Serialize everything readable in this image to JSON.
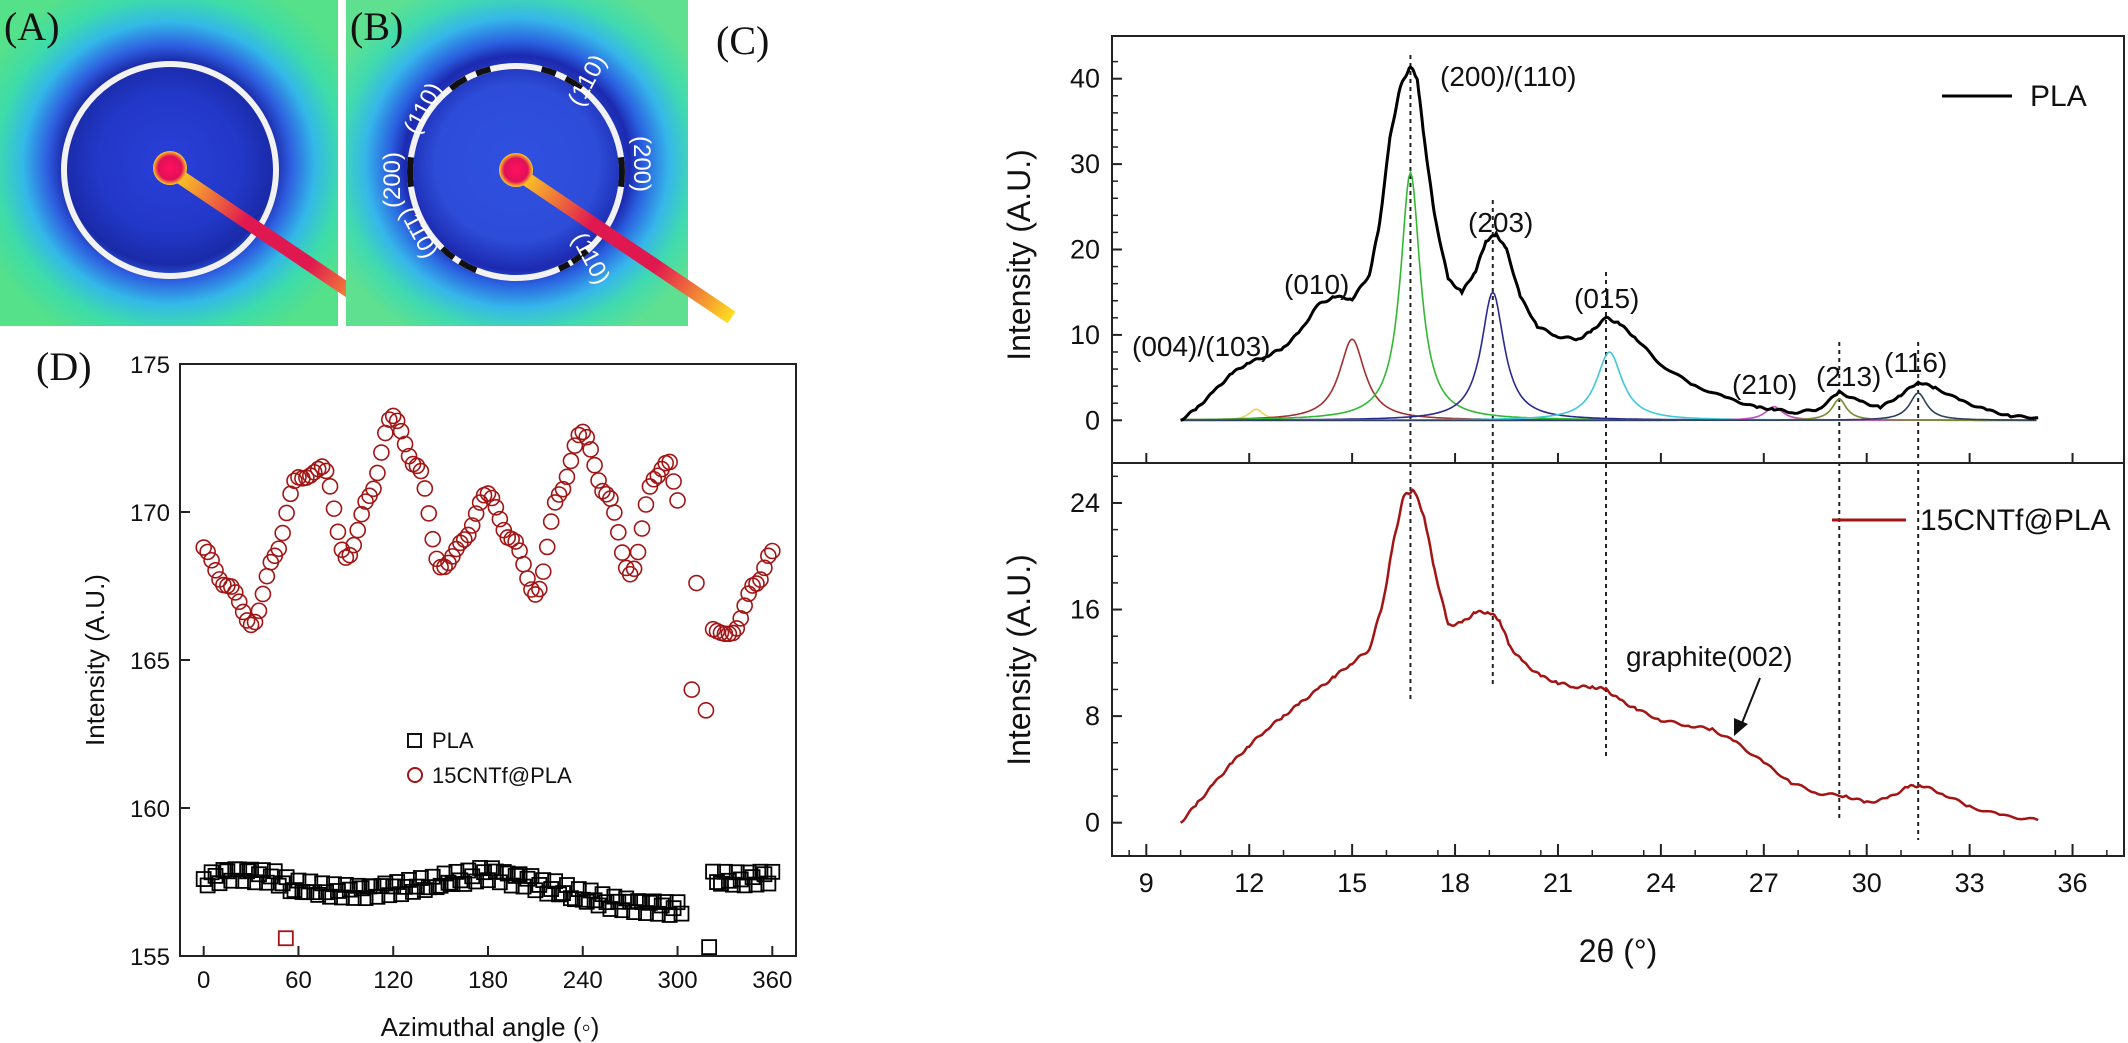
{
  "figure": {
    "panel_labels": [
      "(A)",
      "(B)",
      "(C)",
      "(D)"
    ]
  },
  "colors": {
    "pla": "#000000",
    "cnt": "#a31515",
    "deconv": [
      "#e8d45a",
      "#a33030",
      "#33b833",
      "#2a2a90",
      "#40c8d8",
      "#c050c0",
      "#7a8a30",
      "#304060"
    ],
    "waxs_bg": "#35e0a0",
    "waxs_ring": "#2030c8",
    "waxs_center": "#e0105a"
  },
  "waxs": {
    "A": {
      "description_free": true
    },
    "B": {
      "ring_labels": [
        "(110)",
        "(200)",
        "(110)",
        "(110)",
        "(200)",
        "(110)"
      ]
    }
  },
  "chart_data": [
    {
      "id": "C-top",
      "type": "line",
      "title": "",
      "xlabel": "2θ (°)",
      "ylabel": "Intensity (A.U.)",
      "xlim": [
        8,
        37.5
      ],
      "ylim": [
        -5,
        45
      ],
      "xticks": [
        9,
        12,
        15,
        18,
        21,
        24,
        27,
        30,
        33,
        36
      ],
      "yticks": [
        0,
        10,
        20,
        30,
        40
      ],
      "legend": {
        "position": "top-right",
        "entries": [
          "PLA"
        ]
      },
      "series": [
        {
          "name": "PLA",
          "color": "#000000",
          "x": [
            10.0,
            10.5,
            11.0,
            11.5,
            12.0,
            12.5,
            13.0,
            13.5,
            14.0,
            14.5,
            15.0,
            15.5,
            15.8,
            16.1,
            16.4,
            16.7,
            16.9,
            17.1,
            17.4,
            17.8,
            18.2,
            18.6,
            18.9,
            19.2,
            19.5,
            19.9,
            20.4,
            21.0,
            21.6,
            22.0,
            22.4,
            22.8,
            23.3,
            24.0,
            25.0,
            26.0,
            26.8,
            27.3,
            27.9,
            28.6,
            29.2,
            29.8,
            30.4,
            31.0,
            31.5,
            32.0,
            32.8,
            33.5,
            34.2,
            35.0
          ],
          "values": [
            0,
            1.5,
            3.5,
            5.5,
            6.8,
            7.5,
            8.5,
            10.5,
            13.5,
            14.5,
            14.2,
            17,
            23,
            33,
            39,
            41.5,
            40,
            33,
            24,
            16.5,
            15,
            17.5,
            21,
            21.8,
            20,
            14.5,
            11,
            9.8,
            9.5,
            10.5,
            12,
            11.3,
            9.5,
            6.5,
            4,
            2.5,
            1.5,
            1.3,
            0.9,
            1.3,
            3.3,
            2.2,
            1.5,
            3,
            4.5,
            3.8,
            2.2,
            1.2,
            0.5,
            0.3
          ]
        }
      ],
      "deconvolution_peaks": [
        {
          "center": 12.2,
          "height": 1.3,
          "width": 0.25
        },
        {
          "center": 15.0,
          "height": 9.5,
          "width": 0.45
        },
        {
          "center": 16.7,
          "height": 29,
          "width": 0.35
        },
        {
          "center": 19.1,
          "height": 15,
          "width": 0.4
        },
        {
          "center": 22.5,
          "height": 8,
          "width": 0.45
        },
        {
          "center": 27.3,
          "height": 1.6,
          "width": 0.3
        },
        {
          "center": 29.2,
          "height": 2.5,
          "width": 0.25
        },
        {
          "center": 31.5,
          "height": 3.2,
          "width": 0.3
        }
      ],
      "annotations": [
        "(200)/(110)",
        "(203)",
        "(010)",
        "(015)",
        "(004)/(103)",
        "(210)",
        "(213)",
        "(116)"
      ],
      "dashed_lines_x": [
        16.7,
        19.1,
        22.4,
        29.2,
        31.5
      ]
    },
    {
      "id": "C-bottom",
      "type": "line",
      "title": "",
      "xlabel": "2θ (°)",
      "ylabel": "Intensity (A.U.)",
      "xlim": [
        8,
        37.5
      ],
      "ylim": [
        -2.5,
        27
      ],
      "xticks": [
        9,
        12,
        15,
        18,
        21,
        24,
        27,
        30,
        33,
        36
      ],
      "yticks": [
        0,
        8,
        16,
        24
      ],
      "legend": {
        "position": "top-right",
        "entries": [
          "15CNTf@PLA"
        ]
      },
      "series": [
        {
          "name": "15CNTf@PLA",
          "color": "#a31515",
          "x": [
            10.0,
            10.5,
            11.0,
            11.5,
            12.0,
            12.5,
            13.0,
            13.5,
            14.0,
            14.5,
            15.0,
            15.5,
            15.9,
            16.2,
            16.5,
            16.8,
            17.1,
            17.4,
            17.8,
            18.2,
            18.6,
            19.0,
            19.3,
            19.6,
            20.0,
            20.5,
            21.0,
            21.5,
            22.0,
            22.4,
            22.8,
            23.3,
            24.0,
            24.8,
            25.5,
            26.2,
            27.0,
            27.8,
            28.6,
            29.4,
            30.0,
            30.6,
            31.2,
            31.6,
            32.2,
            33.0,
            34.0,
            35.0
          ],
          "values": [
            0,
            1.5,
            3,
            4.5,
            5.8,
            7,
            8,
            9,
            10,
            11,
            12,
            13,
            16.5,
            21,
            24.5,
            25,
            23,
            19,
            14.8,
            15,
            15.8,
            15.8,
            15.2,
            13.2,
            12,
            11,
            10.5,
            10.2,
            10.2,
            10,
            9.2,
            8.5,
            7.7,
            7.3,
            7,
            6,
            4.5,
            3,
            2.2,
            2,
            1.5,
            1.8,
            2.7,
            2.8,
            2.2,
            1.2,
            0.5,
            0.2
          ]
        }
      ],
      "annotations": [
        "graphite(002)"
      ],
      "dashed_lines_x": [
        16.7,
        19.1,
        22.4,
        29.2,
        31.5
      ]
    },
    {
      "id": "D",
      "type": "scatter",
      "title": "",
      "xlabel": "Azimuthal angle (◦)",
      "ylabel": "Intensity (A.U.)",
      "xlim": [
        -15,
        375
      ],
      "ylim": [
        155,
        175
      ],
      "xticks": [
        0,
        60,
        120,
        180,
        240,
        300,
        360
      ],
      "yticks": [
        155,
        160,
        165,
        170,
        175
      ],
      "legend": {
        "position": "center",
        "entries": [
          "PLA",
          "15CNTf@PLA"
        ]
      },
      "series": [
        {
          "name": "PLA",
          "marker": "square",
          "color": "#000000",
          "values_description": "near-flat around 157.5",
          "x": [
            0,
            20,
            40,
            60,
            80,
            100,
            120,
            140,
            160,
            180,
            200,
            220,
            240,
            260,
            280,
            300,
            320,
            340,
            360
          ],
          "values": [
            157.6,
            157.8,
            157.7,
            157.3,
            157.2,
            157.2,
            157.3,
            157.4,
            157.6,
            157.8,
            157.6,
            157.3,
            157.0,
            156.8,
            156.7,
            156.6,
            157.6,
            157.6,
            157.7
          ]
        },
        {
          "name": "15CNTf@PLA",
          "marker": "circle",
          "color": "#a31515",
          "x": [
            0,
            15,
            30,
            45,
            60,
            75,
            90,
            105,
            120,
            135,
            150,
            165,
            180,
            195,
            210,
            225,
            240,
            255,
            270,
            285,
            295,
            300,
            320,
            335,
            350,
            360
          ],
          "values": [
            168.8,
            167.5,
            166.2,
            168.5,
            171.2,
            171.5,
            168.5,
            170.5,
            173.3,
            171.5,
            168.2,
            169.0,
            170.7,
            169.0,
            167.3,
            170.5,
            172.8,
            170.5,
            168.0,
            171.0,
            171.7,
            170.5,
            166.0,
            166.0,
            167.5,
            168.8
          ]
        }
      ],
      "outliers": [
        {
          "series": "PLA",
          "x": 52,
          "y": 155.6
        },
        {
          "series": "15CNTf@PLA",
          "x": 309,
          "y": 164.0
        },
        {
          "series": "15CNTf@PLA",
          "x": 318,
          "y": 163.3
        },
        {
          "series": "15CNTf@PLA",
          "x": 312,
          "y": 167.6
        },
        {
          "series": "PLA",
          "x": 320,
          "y": 155.3
        }
      ]
    }
  ]
}
